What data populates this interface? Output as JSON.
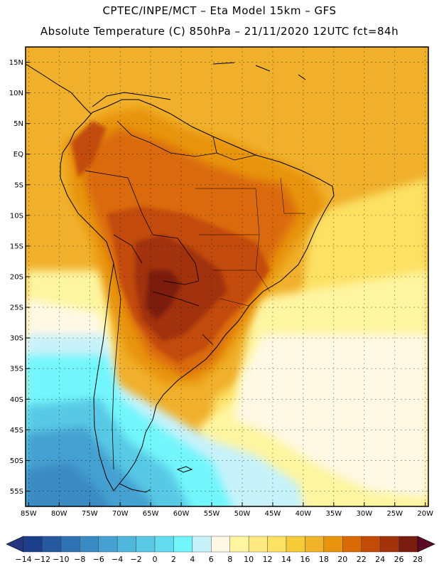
{
  "header": {
    "line1": "CPTEC/INPE/MCT –  Eta Model 15km – GFS",
    "line2": "Absolute Temperature (C) 850hPa – 21/11/2020 12UTC fct=84h"
  },
  "axes": {
    "lat_labels": [
      "15N",
      "10N",
      "5N",
      "EQ",
      "5S",
      "10S",
      "15S",
      "20S",
      "25S",
      "30S",
      "35S",
      "40S",
      "45S",
      "50S",
      "55S"
    ],
    "lat_values": [
      15,
      10,
      5,
      0,
      -5,
      -10,
      -15,
      -20,
      -25,
      -30,
      -35,
      -40,
      -45,
      -50,
      -55
    ],
    "lon_labels": [
      "85W",
      "80W",
      "75W",
      "70W",
      "65W",
      "60W",
      "55W",
      "50W",
      "45W",
      "40W",
      "35W",
      "30W",
      "25W",
      "20W"
    ],
    "lon_values": [
      -85,
      -80,
      -75,
      -70,
      -65,
      -60,
      -55,
      -50,
      -45,
      -40,
      -35,
      -30,
      -25,
      -20
    ]
  },
  "colorbar": {
    "labels": [
      "−14",
      "−12",
      "−10",
      "−8",
      "−6",
      "−4",
      "−2",
      "0",
      "2",
      "4",
      "6",
      "8",
      "10",
      "12",
      "14",
      "16",
      "18",
      "20",
      "22",
      "24",
      "26",
      "28"
    ],
    "colors": [
      "#1c3f8c",
      "#26599f",
      "#2f72b3",
      "#3a8ac4",
      "#45a1d1",
      "#4fb7dc",
      "#59c9e5",
      "#62dcee",
      "#72f6fb",
      "#c8f2fa",
      "#fff8e4",
      "#fef5a0",
      "#feea80",
      "#fce163",
      "#f6cb3a",
      "#f1b32a",
      "#e8940f",
      "#da6a08",
      "#c24c07",
      "#a2320a",
      "#7b1c10"
    ],
    "lower_arrow_color": "#25357e",
    "upper_arrow_color": "#5a0a25"
  },
  "map": {
    "background_temp_color": "#f0b02c",
    "features": [
      "south-america-temperature-field",
      "coastline",
      "country-borders",
      "state-borders",
      "graticule"
    ]
  }
}
